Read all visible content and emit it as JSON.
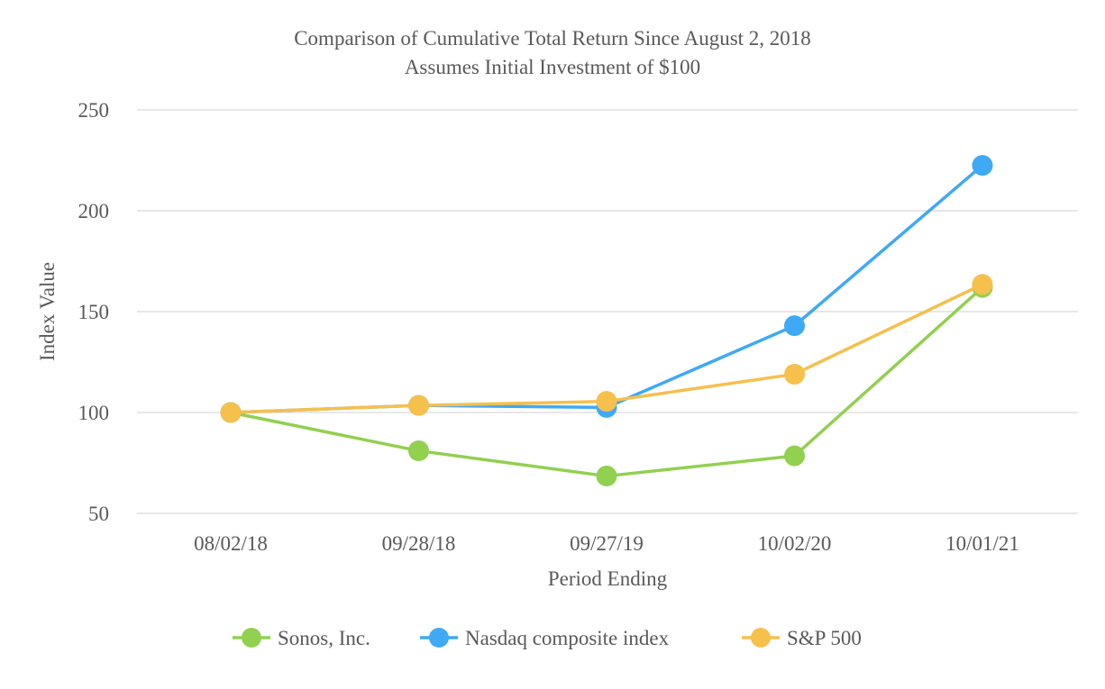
{
  "chart_data": {
    "type": "line",
    "title": "Comparison of Cumulative Total Return Since August 2, 2018",
    "subtitle": "Assumes Initial Investment of $100",
    "xlabel": "Period Ending",
    "ylabel": "Index Value",
    "categories": [
      "08/02/18",
      "09/28/18",
      "09/27/19",
      "10/02/20",
      "10/01/21"
    ],
    "ylim": [
      50,
      250
    ],
    "yticks": [
      50,
      100,
      150,
      200,
      250
    ],
    "grid": true,
    "legend_position": "bottom",
    "series": [
      {
        "name": "Sonos, Inc.",
        "color": "#92d050",
        "values": [
          100.0,
          81.0,
          68.5,
          78.5,
          162.0
        ]
      },
      {
        "name": "Nasdaq composite index",
        "color": "#3fa9f5",
        "values": [
          100.0,
          103.5,
          102.5,
          143.0,
          222.5
        ]
      },
      {
        "name": "S&P 500",
        "color": "#f6c04d",
        "values": [
          100.0,
          103.5,
          105.5,
          119.0,
          163.5
        ]
      }
    ]
  }
}
